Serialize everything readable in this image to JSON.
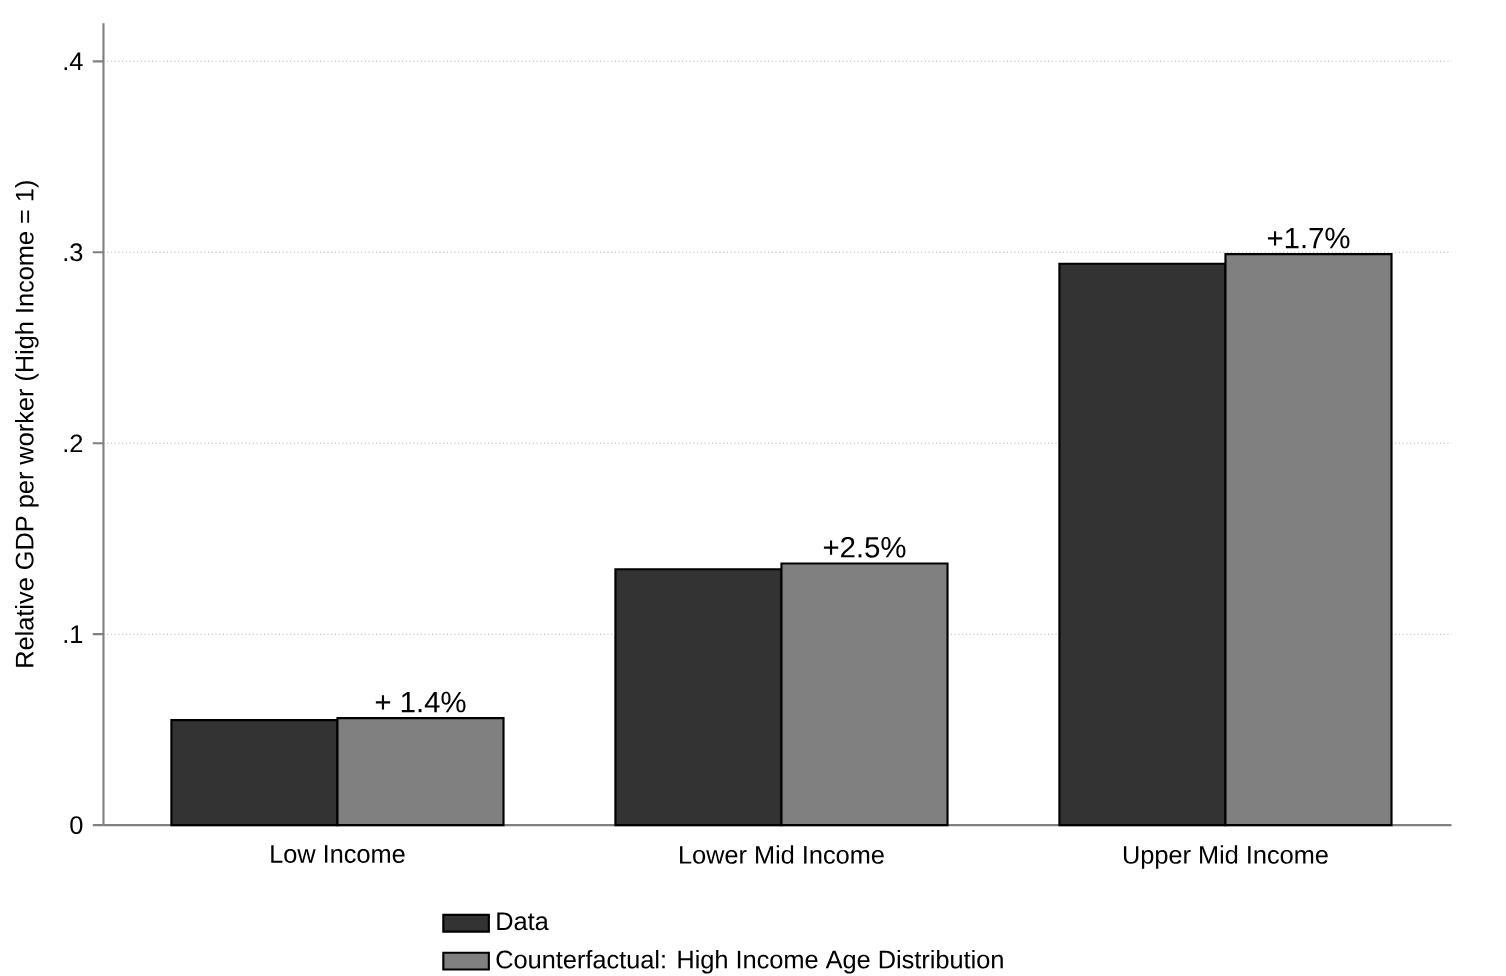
{
  "chart_data": {
    "type": "bar",
    "ylabel": "Relative GDP per worker (High Income = 1)",
    "categories": [
      "Low Income",
      "Lower Mid Income",
      "Upper Mid Income"
    ],
    "series": [
      {
        "name": "Data",
        "color": "#333333",
        "values": [
          0.055,
          0.134,
          0.294
        ]
      },
      {
        "name": "Counterfactual: High Income Age Distribution",
        "color": "#808080",
        "values": [
          0.056,
          0.137,
          0.299
        ]
      }
    ],
    "ylim": [
      0,
      0.42
    ],
    "yticks": [
      0,
      {
        "value": 0.1,
        "label": ".1"
      },
      {
        "value": 0.2,
        "label": ".2"
      },
      {
        "value": 0.3,
        "label": ".3"
      },
      {
        "value": 0.4,
        "label": ".4"
      }
    ],
    "grid": "y",
    "legend": "bottom",
    "annotations": [
      {
        "text": "+ 1.4%",
        "x": "Low Income",
        "y": 0.056
      },
      {
        "text": "+2.5%",
        "x": "Lower Mid Income",
        "y": 0.137
      },
      {
        "text": "+1.7%",
        "x": "Upper Mid Income",
        "y": 0.299
      }
    ]
  }
}
